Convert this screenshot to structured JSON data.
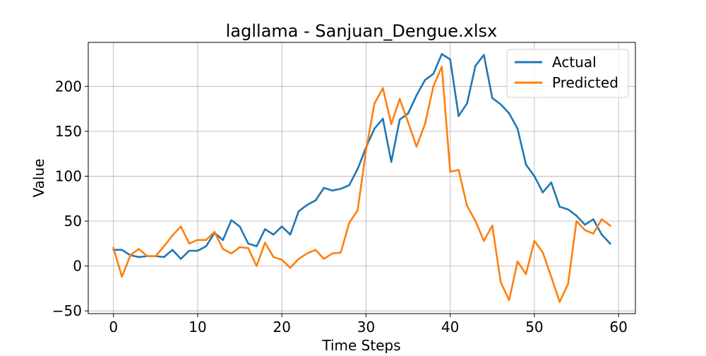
{
  "chart_data": {
    "type": "line",
    "title": "lagllama - Sanjuan_Dengue.xlsx",
    "xlabel": "Time Steps",
    "ylabel": "Value",
    "xlim": [
      -3,
      62
    ],
    "ylim": [
      -53,
      249
    ],
    "xticks": [
      0,
      10,
      20,
      30,
      40,
      50,
      60
    ],
    "yticks": [
      -50,
      0,
      50,
      100,
      150,
      200
    ],
    "xtick_labels": [
      "0",
      "10",
      "20",
      "30",
      "40",
      "50",
      "60"
    ],
    "ytick_labels": [
      "−50",
      "0",
      "50",
      "100",
      "150",
      "200"
    ],
    "grid": true,
    "legend_position": "top-right",
    "x": [
      0,
      1,
      2,
      3,
      4,
      5,
      6,
      7,
      8,
      9,
      10,
      11,
      12,
      13,
      14,
      15,
      16,
      17,
      18,
      19,
      20,
      21,
      22,
      23,
      24,
      25,
      26,
      27,
      28,
      29,
      30,
      31,
      32,
      33,
      34,
      35,
      36,
      37,
      38,
      39,
      40,
      41,
      42,
      43,
      44,
      45,
      46,
      47,
      48,
      49,
      50,
      51,
      52,
      53,
      54,
      55,
      56,
      57,
      58,
      59
    ],
    "series": [
      {
        "name": "Actual",
        "color": "#1f77b4",
        "values": [
          18,
          18,
          12,
          10,
          11,
          11,
          10,
          18,
          8,
          17,
          17,
          22,
          37,
          29,
          51,
          44,
          25,
          22,
          41,
          35,
          44,
          35,
          61,
          68,
          73,
          87,
          84,
          86,
          90,
          108,
          132,
          153,
          164,
          116,
          163,
          170,
          190,
          207,
          214,
          236,
          230,
          167,
          181,
          223,
          235,
          187,
          180,
          170,
          153,
          113,
          100,
          82,
          93,
          66,
          63,
          56,
          46,
          52,
          35,
          25
        ]
      },
      {
        "name": "Predicted",
        "color": "#ff7f0e",
        "values": [
          20,
          -12,
          12,
          19,
          11,
          11,
          22,
          34,
          44,
          25,
          29,
          29,
          38,
          19,
          14,
          21,
          20,
          0,
          26,
          10,
          7,
          -2,
          8,
          14,
          18,
          8,
          14,
          15,
          48,
          62,
          129,
          181,
          198,
          158,
          186,
          160,
          133,
          158,
          200,
          222,
          105,
          107,
          67,
          50,
          28,
          45,
          -18,
          -38,
          5,
          -9,
          28,
          15,
          -12,
          -40,
          -20,
          50,
          40,
          36,
          52,
          45
        ]
      }
    ]
  }
}
